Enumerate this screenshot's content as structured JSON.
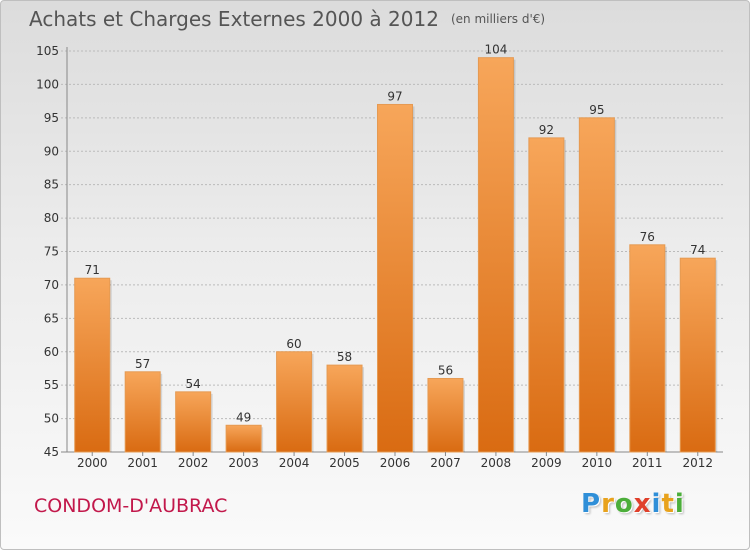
{
  "header": {
    "title": "Achats et Charges Externes 2000 à 2012",
    "unit": "(en milliers d'€)"
  },
  "footer": {
    "town": "CONDOM-D'AUBRAC",
    "logo_letters": [
      "P",
      "r",
      "o",
      "x",
      "i",
      "t",
      "i"
    ],
    "logo_colors": [
      "#2f8fd8",
      "#e8a21c",
      "#4cae3a",
      "#e03f2a",
      "#2f8fd8",
      "#e8a21c",
      "#4cae3a"
    ]
  },
  "colors": {
    "bar_top": "#f7a65a",
    "bar_bottom": "#d96b12",
    "axis_text": "#333333",
    "grid": "#bbbbbb",
    "title": "#555555",
    "town": "#c2184b"
  },
  "chart_data": {
    "type": "bar",
    "title": "Achats et Charges Externes 2000 à 2012",
    "subtitle": "(en milliers d'€)",
    "xlabel": "",
    "ylabel": "",
    "ylim": [
      45,
      105
    ],
    "yticks": [
      45,
      50,
      55,
      60,
      65,
      70,
      75,
      80,
      85,
      90,
      95,
      100,
      105
    ],
    "grid": true,
    "categories": [
      "2000",
      "2001",
      "2002",
      "2003",
      "2004",
      "2005",
      "2006",
      "2007",
      "2008",
      "2009",
      "2010",
      "2011",
      "2012"
    ],
    "values": [
      71,
      57,
      54,
      49,
      60,
      58,
      97,
      56,
      104,
      92,
      95,
      76,
      74
    ]
  }
}
